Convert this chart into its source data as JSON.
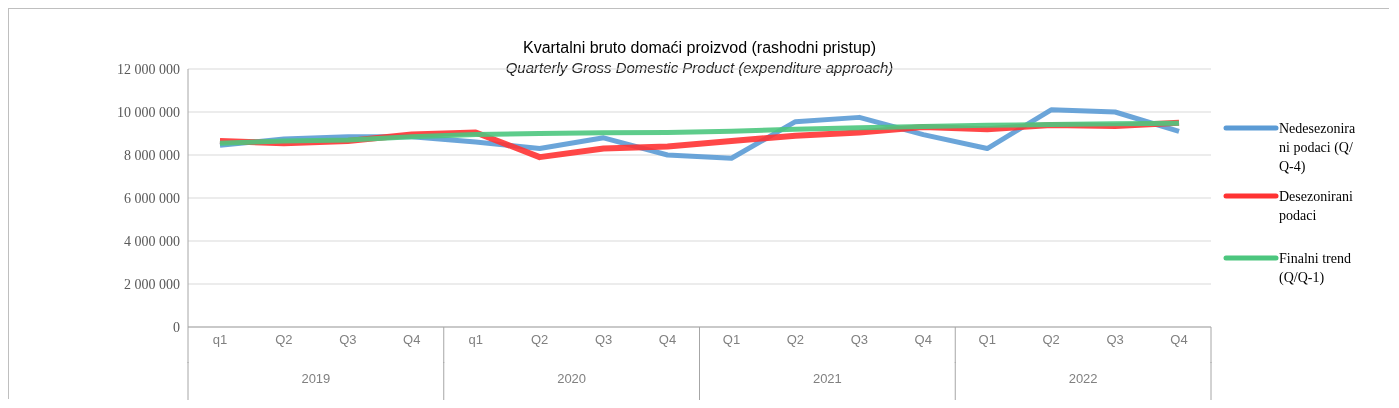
{
  "chart_data": {
    "type": "line",
    "title": "Kvartalni bruto domaći proizvod (rashodni pristup)",
    "subtitle": "Quarterly Gross Domestic Product (expenditure approach)",
    "categories": [
      "q1",
      "Q2",
      "Q3",
      "Q4",
      "q1",
      "Q2",
      "Q3",
      "Q4",
      "Q1",
      "Q2",
      "Q3",
      "Q4",
      "Q1",
      "Q2",
      "Q3",
      "Q4"
    ],
    "annotations": [
      "2019",
      "2020",
      "2021",
      "2022"
    ],
    "series": [
      {
        "name": "Nedesezonirani podaci (Q/Q-4)",
        "color": "#5b9bd5",
        "values": [
          8450000,
          8750000,
          8850000,
          8850000,
          8600000,
          8300000,
          8800000,
          8000000,
          7850000,
          9550000,
          9750000,
          8950000,
          8300000,
          10100000,
          10000000,
          9100000
        ]
      },
      {
        "name": "Desezonirani podaci",
        "color": "#ff3333",
        "values": [
          8650000,
          8550000,
          8650000,
          8950000,
          9050000,
          7900000,
          8300000,
          8400000,
          8650000,
          8900000,
          9050000,
          9300000,
          9200000,
          9400000,
          9350000,
          9500000
        ]
      },
      {
        "name": "Finalni trend (Q/Q-1)",
        "color": "#4cc67e",
        "values": [
          8550000,
          8650000,
          8700000,
          8850000,
          8950000,
          9000000,
          9030000,
          9050000,
          9100000,
          9200000,
          9270000,
          9330000,
          9380000,
          9420000,
          9450000,
          9480000
        ]
      }
    ],
    "ylim": [
      0,
      12000000
    ],
    "yticks": [
      {
        "value": 0,
        "label": "0"
      },
      {
        "value": 2000000,
        "label": "2 000 000"
      },
      {
        "value": 4000000,
        "label": "4 000 000"
      },
      {
        "value": 6000000,
        "label": "6 000 000"
      },
      {
        "value": 8000000,
        "label": "8 000 000"
      },
      {
        "value": 10000000,
        "label": "10 000 000"
      },
      {
        "value": 12000000,
        "label": "12 000 000"
      }
    ],
    "grid": "y",
    "legend": "right",
    "marker": "none",
    "line_style": "solid"
  }
}
